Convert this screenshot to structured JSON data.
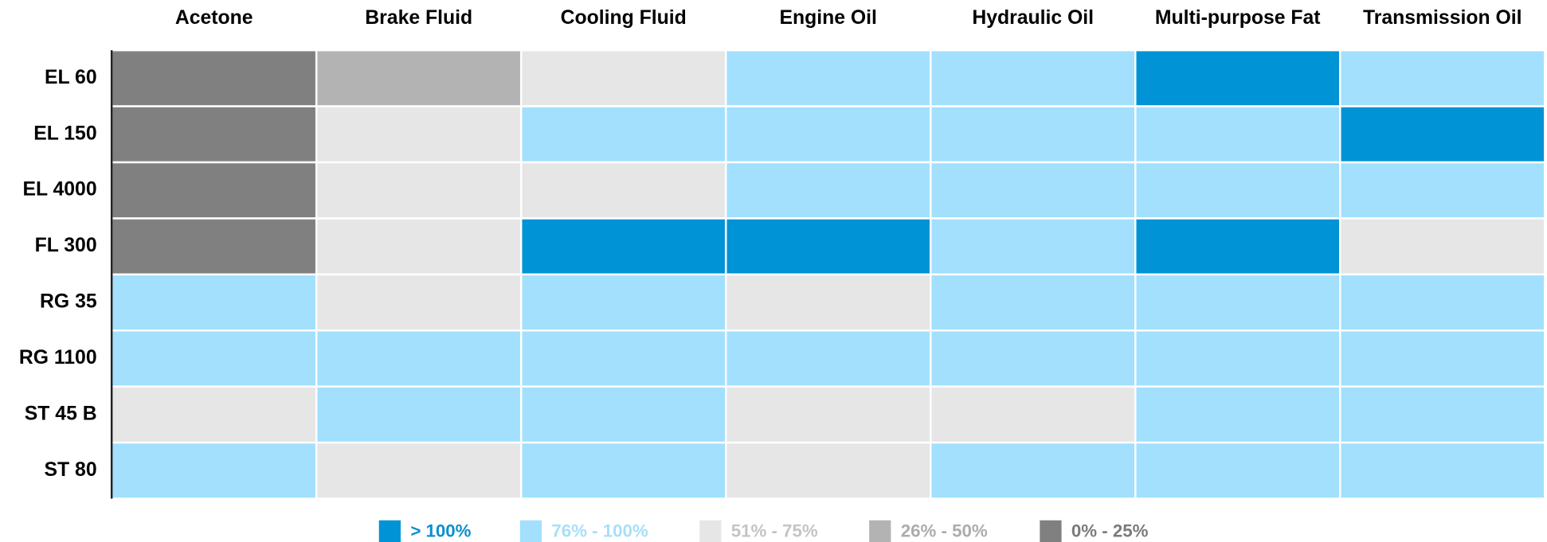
{
  "chart_data": {
    "type": "heatmap",
    "columns": [
      "Acetone",
      "Brake Fluid",
      "Cooling Fluid",
      "Engine Oil",
      "Hydraulic Oil",
      "Multi-purpose Fat",
      "Transmission Oil"
    ],
    "rows": [
      "EL 60",
      "EL 150",
      "EL 4000",
      "FL 300",
      "RG 35",
      "RG 1100",
      "ST 45 B",
      "ST 80"
    ],
    "legend": [
      {
        "label": "> 100%",
        "color": "#0093d5",
        "text_color": "#0a8fd0"
      },
      {
        "label": "76% - 100%",
        "color": "#a2e0fd",
        "text_color": "#a6dff9"
      },
      {
        "label": "51% - 75%",
        "color": "#e6e6e6",
        "text_color": "#c4c4c4"
      },
      {
        "label": "26% - 50%",
        "color": "#b3b3b3",
        "text_color": "#acacac"
      },
      {
        "label": "0% - 25%",
        "color": "#808080",
        "text_color": "#7a7a7a"
      }
    ],
    "cells": [
      [
        "0% - 25%",
        "26% - 50%",
        "51% - 75%",
        "76% - 100%",
        "76% - 100%",
        "> 100%",
        "76% - 100%"
      ],
      [
        "0% - 25%",
        "51% - 75%",
        "76% - 100%",
        "76% - 100%",
        "76% - 100%",
        "76% - 100%",
        "> 100%"
      ],
      [
        "0% - 25%",
        "51% - 75%",
        "51% - 75%",
        "76% - 100%",
        "76% - 100%",
        "76% - 100%",
        "76% - 100%"
      ],
      [
        "0% - 25%",
        "51% - 75%",
        "> 100%",
        "> 100%",
        "76% - 100%",
        "> 100%",
        "51% - 75%"
      ],
      [
        "76% - 100%",
        "51% - 75%",
        "76% - 100%",
        "51% - 75%",
        "76% - 100%",
        "76% - 100%",
        "76% - 100%"
      ],
      [
        "76% - 100%",
        "76% - 100%",
        "76% - 100%",
        "76% - 100%",
        "76% - 100%",
        "76% - 100%",
        "76% - 100%"
      ],
      [
        "51% - 75%",
        "76% - 100%",
        "76% - 100%",
        "51% - 75%",
        "51% - 75%",
        "76% - 100%",
        "76% - 100%"
      ],
      [
        "76% - 100%",
        "51% - 75%",
        "76% - 100%",
        "51% - 75%",
        "76% - 100%",
        "76% - 100%",
        "76% - 100%"
      ]
    ]
  }
}
